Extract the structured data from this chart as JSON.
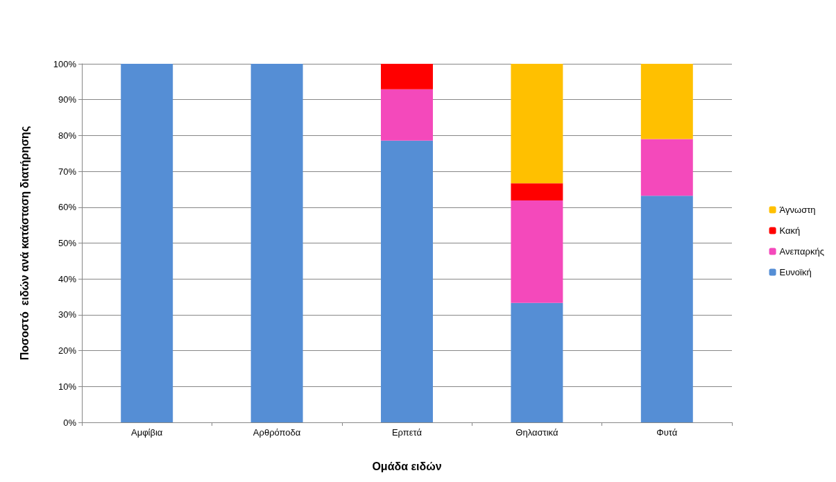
{
  "chart_data": {
    "type": "bar",
    "stacked": true,
    "xlabel": "Ομάδα ειδών",
    "ylabel": "Ποσοστό  ειδών ανά κατάσταση διατήρησης",
    "categories": [
      "Αμφίβια",
      "Αρθρόποδα",
      "Ερπετά",
      "Θηλαστικά",
      "Φυτά"
    ],
    "series": [
      {
        "name": "Ευνοϊκή",
        "color": "#558ed5",
        "values": [
          100,
          100,
          78.6,
          33.3,
          63.2
        ]
      },
      {
        "name": "Ανεπαρκής",
        "color": "#f449bb",
        "values": [
          0,
          0,
          14.3,
          28.6,
          15.8
        ]
      },
      {
        "name": "Κακή",
        "color": "#ff0000",
        "values": [
          0,
          0,
          7.1,
          4.8,
          0
        ]
      },
      {
        "name": "Άγνωστη",
        "color": "#ffc000",
        "values": [
          0,
          0,
          0,
          33.3,
          21
        ]
      }
    ],
    "ylim": [
      0,
      100
    ],
    "yticks": [
      {
        "value": 0,
        "label": "0%"
      },
      {
        "value": 10,
        "label": "10%"
      },
      {
        "value": 20,
        "label": "20%"
      },
      {
        "value": 30,
        "label": "30%"
      },
      {
        "value": 40,
        "label": "40%"
      },
      {
        "value": 50,
        "label": "50%"
      },
      {
        "value": 60,
        "label": "60%"
      },
      {
        "value": 70,
        "label": "70%"
      },
      {
        "value": 80,
        "label": "80%"
      },
      {
        "value": 90,
        "label": "90%"
      },
      {
        "value": 100,
        "label": "100%"
      }
    ],
    "grid": "y",
    "legend": "right"
  }
}
